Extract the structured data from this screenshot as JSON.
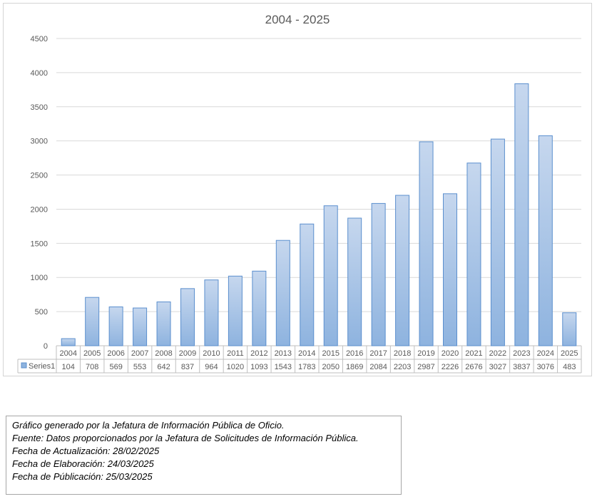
{
  "chart_data": {
    "type": "bar",
    "title": "2004 - 2025",
    "categories": [
      "2004",
      "2005",
      "2006",
      "2007",
      "2008",
      "2009",
      "2010",
      "2011",
      "2012",
      "2013",
      "2014",
      "2015",
      "2016",
      "2017",
      "2018",
      "2019",
      "2020",
      "2021",
      "2022",
      "2023",
      "2024",
      "2025"
    ],
    "series": [
      {
        "name": "Series1",
        "values": [
          104,
          708,
          569,
          553,
          642,
          837,
          964,
          1020,
          1093,
          1543,
          1783,
          2050,
          1869,
          2084,
          2203,
          2987,
          2226,
          2676,
          3027,
          3837,
          3076,
          483
        ]
      }
    ],
    "ylim": [
      0,
      4500
    ],
    "yticks": [
      0,
      500,
      1000,
      1500,
      2000,
      2500,
      3000,
      3500,
      4000,
      4500
    ],
    "grid": true,
    "data_table": true,
    "colors": {
      "bar_fill_top": "#c6d7ee",
      "bar_fill_bottom": "#8eb3df",
      "bar_stroke": "#5b8fce",
      "grid": "#d9d9d9",
      "text": "#595959"
    }
  },
  "notes": {
    "lines": [
      "Gráfico generado por la Jefatura de Información Pública de Oficio.",
      "Fuente: Datos proporcionados por la Jefatura de Solicitudes de Información Pública.",
      "Fecha de Actualización: 28/02/2025",
      "Fecha de Elaboración: 24/03/2025",
      "Fecha de Públicación: 25/03/2025"
    ]
  }
}
